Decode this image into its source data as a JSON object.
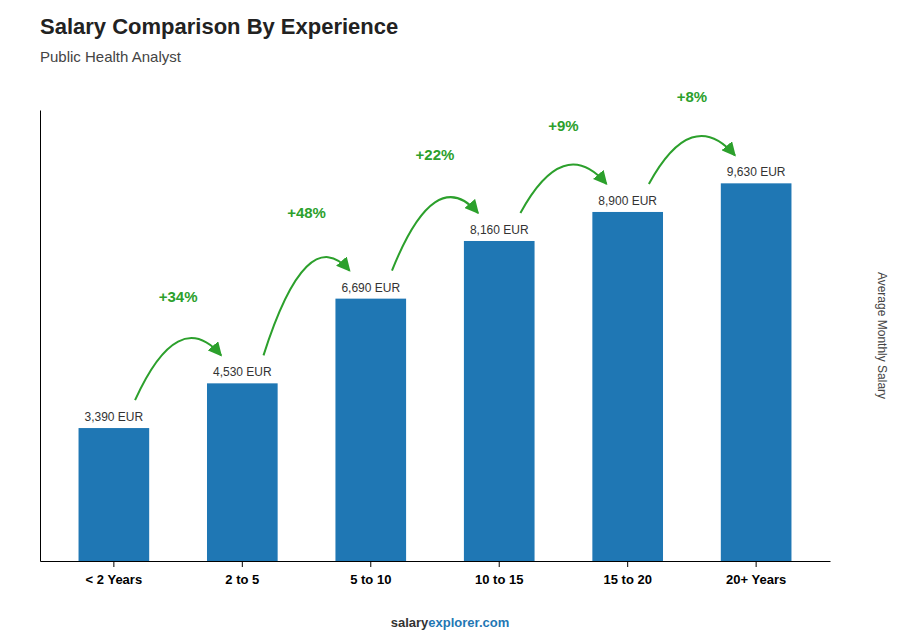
{
  "chart_data": {
    "type": "bar",
    "title": "Salary Comparison By Experience",
    "subtitle": "Public Health Analyst",
    "ylabel": "Average Monthly Salary",
    "categories": [
      "< 2 Years",
      "2 to 5",
      "5 to 10",
      "10 to 15",
      "15 to 20",
      "20+ Years"
    ],
    "values": [
      3390,
      4530,
      6690,
      8160,
      8900,
      9630
    ],
    "value_labels": [
      "3,390 EUR",
      "4,530 EUR",
      "6,690 EUR",
      "8,160 EUR",
      "8,900 EUR",
      "9,630 EUR"
    ],
    "data_labels": true,
    "annotations": [
      "+34%",
      "+48%",
      "+22%",
      "+9%",
      "+8%"
    ],
    "ylim": [
      0,
      11500
    ],
    "tick_labels": "x",
    "footer": [
      "salary",
      "explorer.com"
    ]
  }
}
